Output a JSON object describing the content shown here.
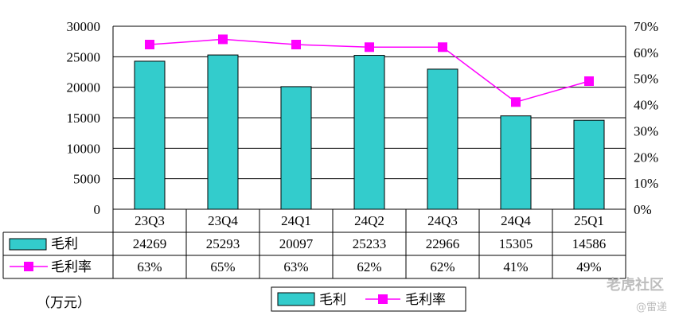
{
  "chart_data": {
    "type": "bar",
    "categories": [
      "23Q3",
      "23Q4",
      "24Q1",
      "24Q2",
      "24Q3",
      "24Q4",
      "25Q1"
    ],
    "series": [
      {
        "name": "毛利",
        "type": "bar",
        "axis": "left",
        "values": [
          24269,
          25293,
          20097,
          25233,
          22966,
          15305,
          14586
        ],
        "color": "#33CCCC",
        "value_labels": [
          "24269",
          "25293",
          "20097",
          "25233",
          "22966",
          "15305",
          "14586"
        ]
      },
      {
        "name": "毛利率",
        "type": "line",
        "axis": "right",
        "values": [
          63,
          65,
          63,
          62,
          62,
          41,
          49
        ],
        "color": "#FF00FF",
        "value_labels": [
          "63%",
          "65%",
          "63%",
          "62%",
          "62%",
          "41%",
          "49%"
        ]
      }
    ],
    "y_left": {
      "ticks": [
        "30000",
        "25000",
        "20000",
        "15000",
        "10000",
        "5000",
        "0"
      ],
      "ylim": [
        0,
        30000
      ]
    },
    "y_right": {
      "ticks": [
        "70%",
        "60%",
        "50%",
        "40%",
        "30%",
        "20%",
        "10%",
        "0%"
      ],
      "ylim": [
        0,
        70
      ]
    },
    "unit_label": "（万元）",
    "grid": true,
    "legend_position": "bottom"
  },
  "watermark": {
    "brand": "老虎社区",
    "author": "@雷递"
  }
}
